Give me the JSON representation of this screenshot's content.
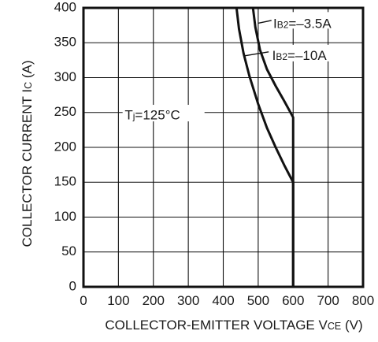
{
  "chart_data": {
    "type": "line",
    "title": "",
    "xlabel": {
      "text": "COLLECTOR-EMITTER VOLTAGE",
      "symbol_main": "V",
      "symbol_sub": "CE",
      "unit": "(V)"
    },
    "ylabel": {
      "text": "COLLECTOR CURRENT",
      "symbol_main": "I",
      "symbol_sub": "C",
      "unit": "(A)"
    },
    "xlim": [
      0,
      800
    ],
    "ylim": [
      0,
      400
    ],
    "xticks": [
      0,
      100,
      200,
      300,
      400,
      500,
      600,
      700,
      800
    ],
    "yticks": [
      0,
      50,
      100,
      150,
      200,
      250,
      300,
      350,
      400
    ],
    "grid": true,
    "series": [
      {
        "name": "IB2=-3.5A",
        "points": [
          [
            0,
            400
          ],
          [
            485,
            400
          ],
          [
            492,
            372
          ],
          [
            505,
            340
          ],
          [
            525,
            312
          ],
          [
            550,
            288
          ],
          [
            575,
            266
          ],
          [
            600,
            243
          ],
          [
            600,
            0
          ]
        ]
      },
      {
        "name": "IB2=-10A",
        "points": [
          [
            0,
            400
          ],
          [
            438,
            400
          ],
          [
            445,
            370
          ],
          [
            458,
            335
          ],
          [
            475,
            302
          ],
          [
            500,
            262
          ],
          [
            525,
            228
          ],
          [
            550,
            200
          ],
          [
            575,
            174
          ],
          [
            600,
            150
          ],
          [
            600,
            0
          ]
        ]
      }
    ],
    "annotations": [
      {
        "text_main": "I",
        "text_sub": "B2",
        "text_tail": "=–3.5A",
        "series": "IB2=-3.5A"
      },
      {
        "text_main": "I",
        "text_sub": "B2",
        "text_tail": "=–10A",
        "series": "IB2=-10A"
      },
      {
        "text_main": "T",
        "text_sub": "j",
        "text_tail": "=125°C"
      }
    ],
    "colors": {
      "axis": "#111111",
      "grid": "#111111",
      "series": "#111111",
      "text": "#1a1a1a",
      "background": "#ffffff"
    }
  }
}
